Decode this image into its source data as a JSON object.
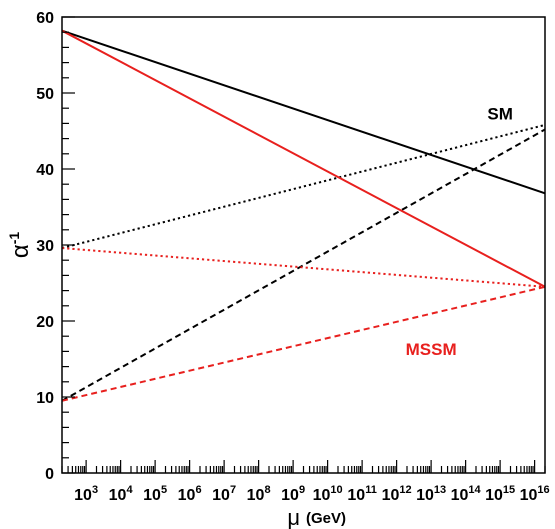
{
  "chart_data": {
    "type": "line",
    "title": "",
    "xlabel": "μ",
    "xlabel_unit": "(GeV)",
    "ylabel": "α",
    "ylabel_superscript": "-1",
    "x_scale": "log",
    "xlim": [
      200,
      20000000000000000
    ],
    "ylim": [
      0,
      60
    ],
    "y_ticks": [
      0,
      10,
      20,
      30,
      40,
      50,
      60
    ],
    "x_tick_labels": [
      {
        "base": "10",
        "exp": "3",
        "value": 1000
      },
      {
        "base": "10",
        "exp": "4",
        "value": 10000
      },
      {
        "base": "10",
        "exp": "5",
        "value": 100000
      },
      {
        "base": "10",
        "exp": "6",
        "value": 1000000
      },
      {
        "base": "10",
        "exp": "7",
        "value": 10000000
      },
      {
        "base": "10",
        "exp": "8",
        "value": 100000000
      },
      {
        "base": "10",
        "exp": "9",
        "value": 1000000000
      },
      {
        "base": "10",
        "exp": "10",
        "value": 10000000000
      },
      {
        "base": "10",
        "exp": "11",
        "value": 100000000000
      },
      {
        "base": "10",
        "exp": "12",
        "value": 1000000000000
      },
      {
        "base": "10",
        "exp": "13",
        "value": 10000000000000
      },
      {
        "base": "10",
        "exp": "14",
        "value": 100000000000000
      },
      {
        "base": "10",
        "exp": "15",
        "value": 1000000000000000
      },
      {
        "base": "10",
        "exp": "16",
        "value": 10000000000000000
      }
    ],
    "grid": false,
    "series": [
      {
        "group": "SM",
        "color": "#000000",
        "dash": "solid",
        "x": [
          200,
          20000000000000000
        ],
        "y": [
          58.2,
          36.8
        ]
      },
      {
        "group": "SM",
        "color": "#000000",
        "dash": "dotted",
        "x": [
          200,
          20000000000000000
        ],
        "y": [
          29.6,
          45.8
        ]
      },
      {
        "group": "SM",
        "color": "#000000",
        "dash": "dashed",
        "x": [
          200,
          20000000000000000
        ],
        "y": [
          9.5,
          45.2
        ]
      },
      {
        "group": "MSSM",
        "color": "#e8201e",
        "dash": "solid",
        "x": [
          200,
          20000000000000000
        ],
        "y": [
          58.2,
          24.5
        ]
      },
      {
        "group": "MSSM",
        "color": "#e8201e",
        "dash": "dotted",
        "x": [
          200,
          20000000000000000
        ],
        "y": [
          29.6,
          24.5
        ]
      },
      {
        "group": "MSSM",
        "color": "#e8201e",
        "dash": "dashed",
        "x": [
          200,
          20000000000000000
        ],
        "y": [
          9.5,
          24.5
        ]
      }
    ],
    "annotations": [
      {
        "text": "SM",
        "x": 1000000000000000,
        "y": 46.5,
        "color": "#000000"
      },
      {
        "text": "MSSM",
        "x": 10000000000000,
        "y": 15.5,
        "color": "#e8201e"
      }
    ]
  }
}
